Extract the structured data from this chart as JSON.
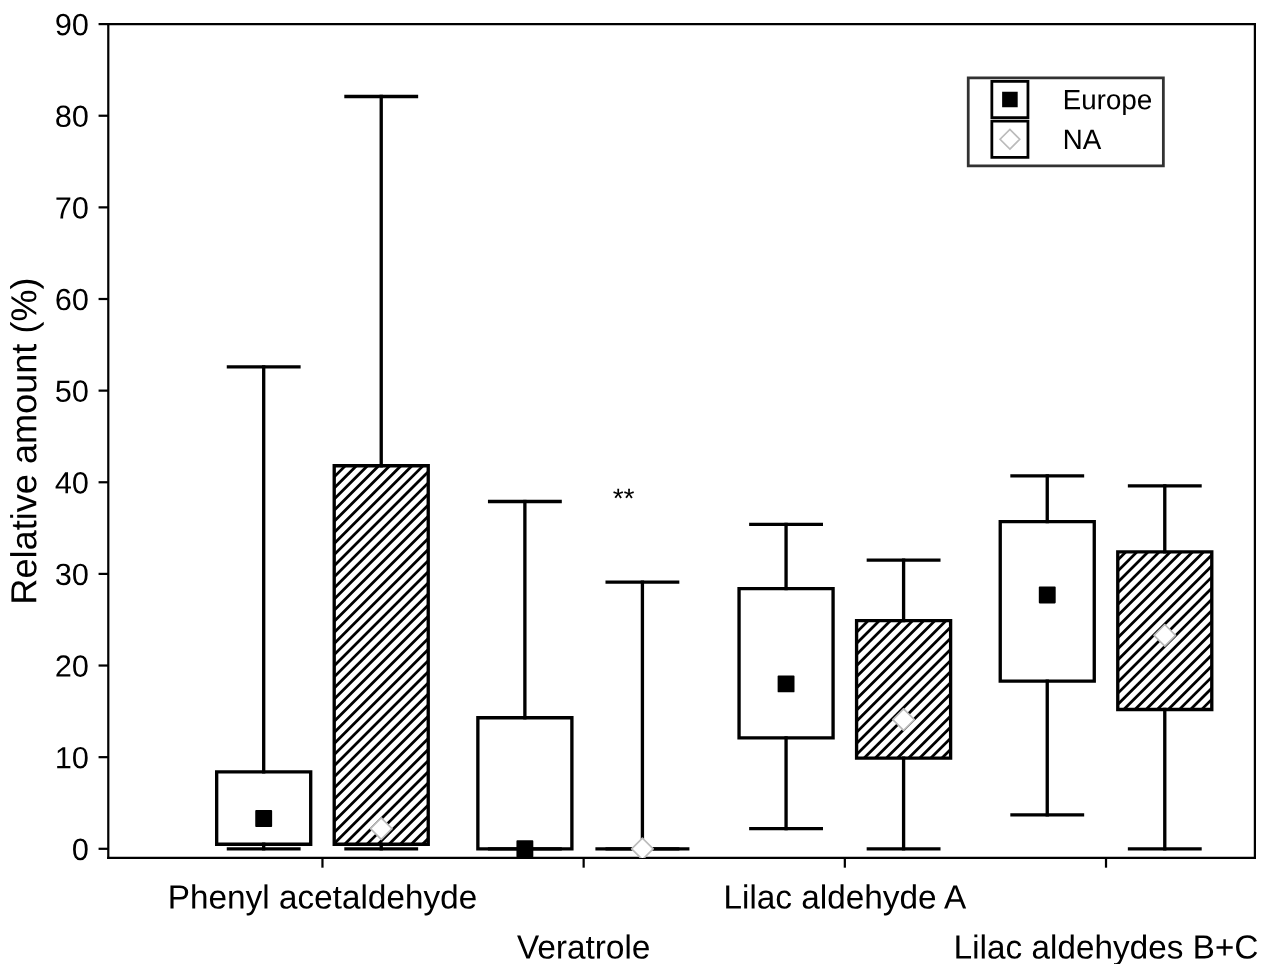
{
  "chart_data": {
    "type": "box",
    "ylabel": "Relative amount (%)",
    "categories": [
      "Phenyl acetaldehyde",
      "Veratrole",
      "Lilac aldehyde A",
      "Lilac aldehydes B+C"
    ],
    "ylim": [
      -1,
      90
    ],
    "yticks": [
      0,
      10,
      20,
      30,
      40,
      50,
      60,
      70,
      80,
      90
    ],
    "grid": false,
    "legend": "top right",
    "annotations": [
      "**"
    ],
    "series": [
      {
        "name": "Europe",
        "color": "#ffffff",
        "marker": "square",
        "boxes": [
          {
            "low": 0,
            "q1": 0.5,
            "q3": 8.4,
            "high": 52.6,
            "mean": 3.3
          },
          {
            "low": 0,
            "q1": 0,
            "q3": 14.3,
            "high": 37.9,
            "mean": 0
          },
          {
            "low": 2.2,
            "q1": 12.1,
            "q3": 28.4,
            "high": 35.4,
            "mean": 18.0
          },
          {
            "low": 3.7,
            "q1": 18.3,
            "q3": 35.7,
            "high": 40.7,
            "mean": 27.7
          }
        ]
      },
      {
        "name": "NA",
        "color": "#000000",
        "marker": "diamond",
        "boxes": [
          {
            "low": 0,
            "q1": 0.5,
            "q3": 41.8,
            "high": 82.1,
            "mean": 2.2
          },
          {
            "low": 0,
            "q1": 0,
            "q3": 0,
            "high": 29.1,
            "mean": 0
          },
          {
            "low": 0,
            "q1": 9.9,
            "q3": 24.9,
            "high": 31.5,
            "mean": 14.1
          },
          {
            "low": 0,
            "q1": 15.2,
            "q3": 32.4,
            "high": 39.6,
            "mean": 23.3
          }
        ]
      }
    ]
  }
}
